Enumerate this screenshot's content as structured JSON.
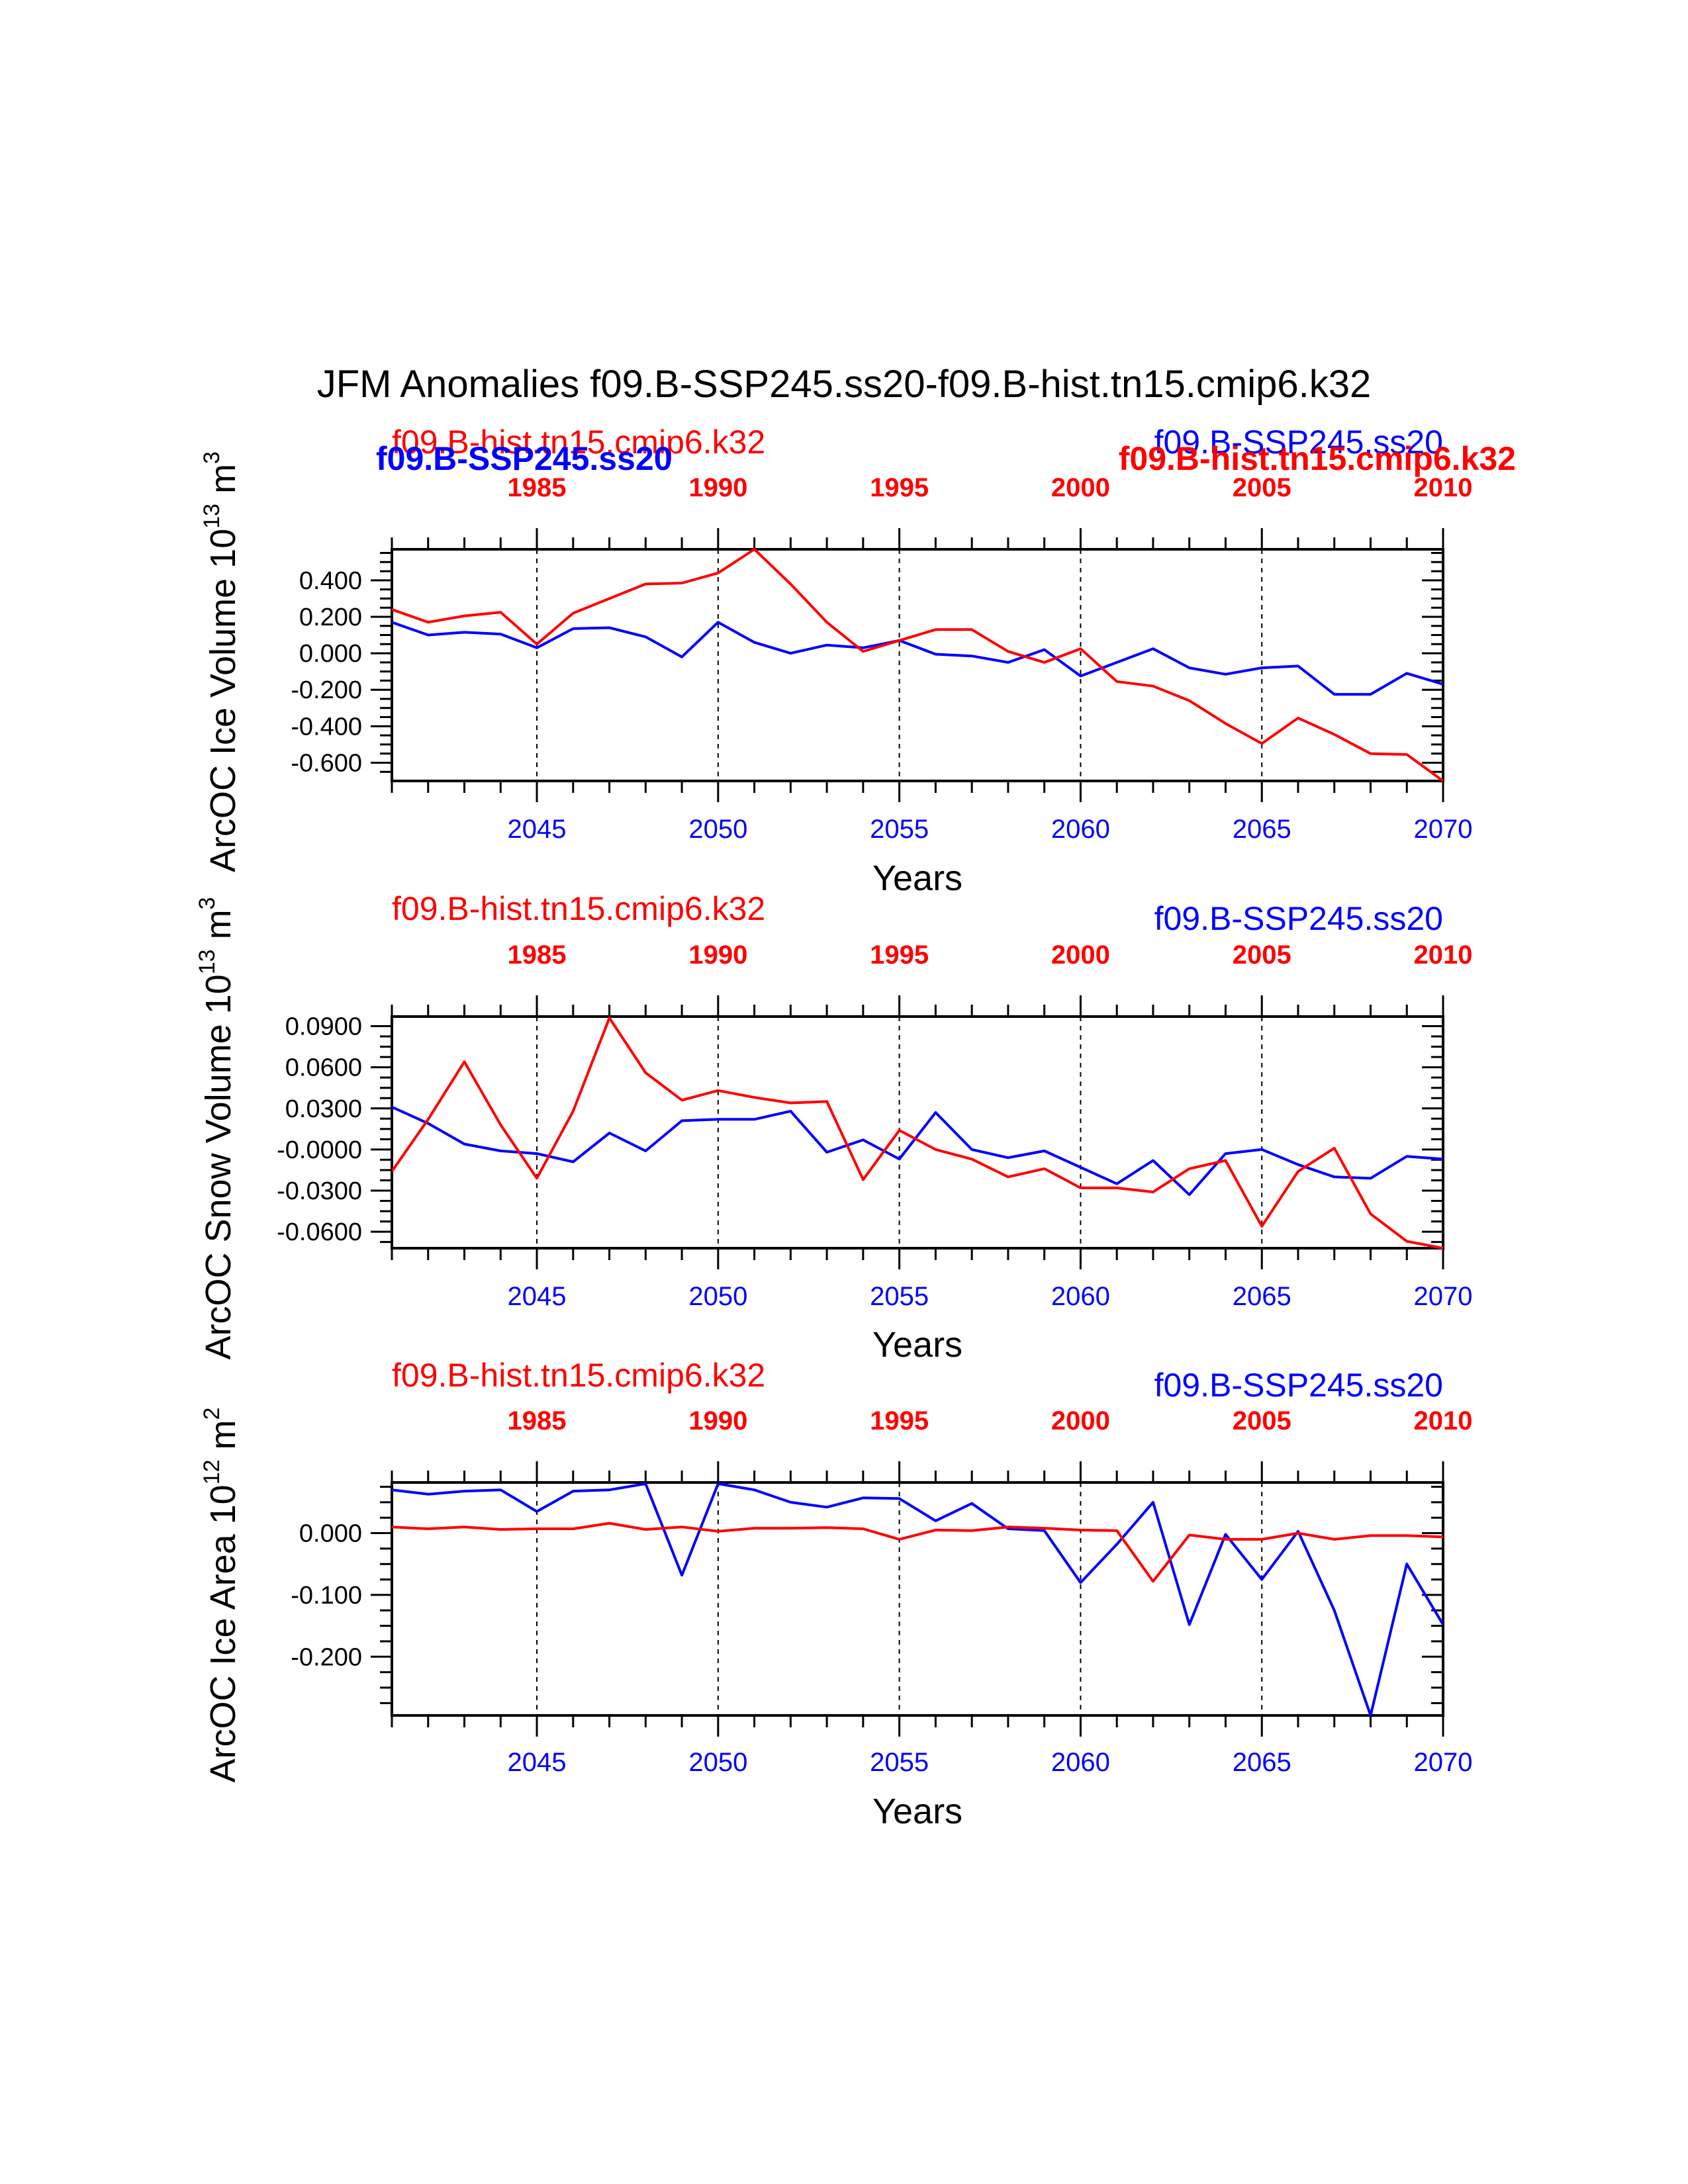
{
  "figure_title": "JFM Anomalies f09.B-SSP245.ss20-f09.B-hist.tn15.cmip6.k32",
  "colors": {
    "ssp": "#0000ff",
    "hist": "#ff0000",
    "axis": "#000000"
  },
  "chart_data": [
    {
      "type": "line",
      "title": "",
      "xlabel": "Years",
      "ylabel": "ArcOC Ice Volume 10",
      "ylabel_exp": "13",
      "ylabel_unit": " m",
      "ylabel_unit_exp": "3",
      "ylim": [
        -0.7,
        0.57
      ],
      "yticks": [
        0.4,
        0.2,
        0.0,
        -0.2,
        -0.4,
        -0.6
      ],
      "ytick_labels": [
        "0.400",
        "0.200",
        "0.000",
        "-0.200",
        "-0.400",
        "-0.600"
      ],
      "header_labels": [
        {
          "text": "f09.B-hist.tn15.cmip6.k32",
          "color": "#ff0000",
          "bold": false,
          "pos": "left-upper"
        },
        {
          "text": "f09.B-SSP245.ss20",
          "color": "#0000ff",
          "bold": true,
          "pos": "left-lower"
        },
        {
          "text": "f09.B-SSP245.ss20",
          "color": "#0000ff",
          "bold": false,
          "pos": "right-upper"
        },
        {
          "text": "f09.B-hist.tn15.cmip6.k32",
          "color": "#ff0000",
          "bold": true,
          "pos": "right-lower"
        }
      ],
      "series": [
        {
          "name": "f09.B-SSP245.ss20",
          "axis": "bottom",
          "color": "#0000ff",
          "x": [
            2041,
            2042,
            2043,
            2044,
            2045,
            2046,
            2047,
            2048,
            2049,
            2050,
            2051,
            2052,
            2053,
            2054,
            2055,
            2056,
            2057,
            2058,
            2059,
            2060,
            2061,
            2062,
            2063,
            2064,
            2065,
            2066,
            2067,
            2068,
            2069,
            2070
          ],
          "y": [
            0.17,
            0.1,
            0.115,
            0.105,
            0.03,
            0.135,
            0.14,
            0.09,
            -0.02,
            0.17,
            0.06,
            0.0,
            0.045,
            0.03,
            0.07,
            -0.005,
            -0.015,
            -0.05,
            0.02,
            -0.125,
            -0.05,
            0.025,
            -0.08,
            -0.115,
            -0.08,
            -0.07,
            -0.225,
            -0.225,
            -0.11,
            -0.17
          ]
        },
        {
          "name": "f09.B-hist.tn15.cmip6.k32",
          "axis": "top",
          "color": "#ff0000",
          "x": [
            1981,
            1982,
            1983,
            1984,
            1985,
            1986,
            1987,
            1988,
            1989,
            1990,
            1991,
            1992,
            1993,
            1994,
            1995,
            1996,
            1997,
            1998,
            1999,
            2000,
            2001,
            2002,
            2003,
            2004,
            2005,
            2006,
            2007,
            2008,
            2009,
            2010
          ],
          "y": [
            0.24,
            0.17,
            0.205,
            0.225,
            0.05,
            0.22,
            0.3,
            0.38,
            0.385,
            0.44,
            0.57,
            0.38,
            0.17,
            0.01,
            0.07,
            0.13,
            0.13,
            0.01,
            -0.05,
            0.025,
            -0.155,
            -0.18,
            -0.26,
            -0.385,
            -0.495,
            -0.355,
            -0.445,
            -0.55,
            -0.555,
            -0.7
          ]
        }
      ]
    },
    {
      "type": "line",
      "title": "",
      "xlabel": "Years",
      "ylabel": "ArcOC Snow Volume 10",
      "ylabel_exp": "13",
      "ylabel_unit": " m",
      "ylabel_unit_exp": "3",
      "ylim": [
        -0.072,
        0.097
      ],
      "yticks": [
        0.09,
        0.06,
        0.03,
        0.0,
        -0.03,
        -0.06
      ],
      "ytick_labels": [
        "0.0900",
        "0.0600",
        "0.0300",
        "-0.0000",
        "-0.0300",
        "-0.0600"
      ],
      "header_labels": [
        {
          "text": "f09.B-hist.tn15.cmip6.k32",
          "color": "#ff0000",
          "bold": false,
          "pos": "left-upper"
        },
        {
          "text": "f09.B-SSP245.ss20",
          "color": "#0000ff",
          "bold": false,
          "pos": "right-upper"
        }
      ],
      "series": [
        {
          "name": "f09.B-SSP245.ss20",
          "axis": "bottom",
          "color": "#0000ff",
          "x": [
            2041,
            2042,
            2043,
            2044,
            2045,
            2046,
            2047,
            2048,
            2049,
            2050,
            2051,
            2052,
            2053,
            2054,
            2055,
            2056,
            2057,
            2058,
            2059,
            2060,
            2061,
            2062,
            2063,
            2064,
            2065,
            2066,
            2067,
            2068,
            2069,
            2070
          ],
          "y": [
            0.031,
            0.019,
            0.004,
            -0.001,
            -0.003,
            -0.009,
            0.012,
            -0.001,
            0.021,
            0.022,
            0.022,
            0.028,
            -0.002,
            0.007,
            -0.007,
            0.027,
            0.0,
            -0.006,
            -0.001,
            -0.013,
            -0.025,
            -0.008,
            -0.033,
            -0.003,
            0.0,
            -0.011,
            -0.02,
            -0.021,
            -0.005,
            -0.007
          ]
        },
        {
          "name": "f09.B-hist.tn15.cmip6.k32",
          "axis": "top",
          "color": "#ff0000",
          "x": [
            1981,
            1982,
            1983,
            1984,
            1985,
            1986,
            1987,
            1988,
            1989,
            1990,
            1991,
            1992,
            1993,
            1994,
            1995,
            1996,
            1997,
            1998,
            1999,
            2000,
            2001,
            2002,
            2003,
            2004,
            2005,
            2006,
            2007,
            2008,
            2009,
            2010
          ],
          "y": [
            -0.016,
            0.022,
            0.064,
            0.018,
            -0.021,
            0.028,
            0.096,
            0.056,
            0.036,
            0.043,
            0.038,
            0.034,
            0.035,
            -0.022,
            0.014,
            0.0,
            -0.007,
            -0.02,
            -0.014,
            -0.028,
            -0.028,
            -0.031,
            -0.014,
            -0.008,
            -0.056,
            -0.016,
            0.001,
            -0.047,
            -0.067,
            -0.072
          ]
        }
      ]
    },
    {
      "type": "line",
      "title": "",
      "xlabel": "Years",
      "ylabel": "ArcOC Ice Area 10",
      "ylabel_exp": "12",
      "ylabel_unit": " m",
      "ylabel_unit_exp": "2",
      "ylim": [
        -0.295,
        0.082
      ],
      "yticks": [
        0.0,
        -0.1,
        -0.2
      ],
      "ytick_labels": [
        "0.000",
        "-0.100",
        "-0.200"
      ],
      "header_labels": [
        {
          "text": "f09.B-hist.tn15.cmip6.k32",
          "color": "#ff0000",
          "bold": false,
          "pos": "left-upper"
        },
        {
          "text": "f09.B-SSP245.ss20",
          "color": "#0000ff",
          "bold": false,
          "pos": "right-upper"
        }
      ],
      "series": [
        {
          "name": "f09.B-SSP245.ss20",
          "axis": "bottom",
          "color": "#0000ff",
          "x": [
            2041,
            2042,
            2043,
            2044,
            2045,
            2046,
            2047,
            2048,
            2049,
            2050,
            2051,
            2052,
            2053,
            2054,
            2055,
            2056,
            2057,
            2058,
            2059,
            2060,
            2061,
            2062,
            2063,
            2064,
            2065,
            2066,
            2067,
            2068,
            2069,
            2070
          ],
          "y": [
            0.07,
            0.063,
            0.068,
            0.07,
            0.035,
            0.068,
            0.07,
            0.08,
            -0.068,
            0.08,
            0.07,
            0.05,
            0.042,
            0.057,
            0.056,
            0.02,
            0.048,
            0.007,
            0.004,
            -0.08,
            -0.018,
            0.05,
            -0.148,
            -0.002,
            -0.075,
            0.003,
            -0.125,
            -0.295,
            -0.05,
            -0.148
          ]
        },
        {
          "name": "f09.B-hist.tn15.cmip6.k32",
          "axis": "top",
          "color": "#ff0000",
          "x": [
            1981,
            1982,
            1983,
            1984,
            1985,
            1986,
            1987,
            1988,
            1989,
            1990,
            1991,
            1992,
            1993,
            1994,
            1995,
            1996,
            1997,
            1998,
            1999,
            2000,
            2001,
            2002,
            2003,
            2004,
            2005,
            2006,
            2007,
            2008,
            2009,
            2010
          ],
          "y": [
            0.01,
            0.007,
            0.01,
            0.006,
            0.007,
            0.007,
            0.016,
            0.006,
            0.01,
            0.003,
            0.008,
            0.008,
            0.009,
            0.007,
            -0.01,
            0.005,
            0.004,
            0.01,
            0.008,
            0.005,
            0.004,
            -0.078,
            -0.003,
            -0.01,
            -0.01,
            0.0,
            -0.01,
            -0.004,
            -0.004,
            -0.006
          ]
        }
      ]
    }
  ],
  "x_axis": {
    "bottom": {
      "range": [
        2041,
        2070
      ],
      "major": [
        2045,
        2050,
        2055,
        2060,
        2065,
        2070
      ],
      "labels": [
        "2045",
        "2050",
        "2055",
        "2060",
        "2065",
        "2070"
      ]
    },
    "top": {
      "range": [
        1981,
        2010
      ],
      "major": [
        1985,
        1990,
        1995,
        2000,
        2005,
        2010
      ],
      "labels": [
        "1985",
        "1990",
        "1995",
        "2000",
        "2005",
        "2010"
      ]
    }
  }
}
